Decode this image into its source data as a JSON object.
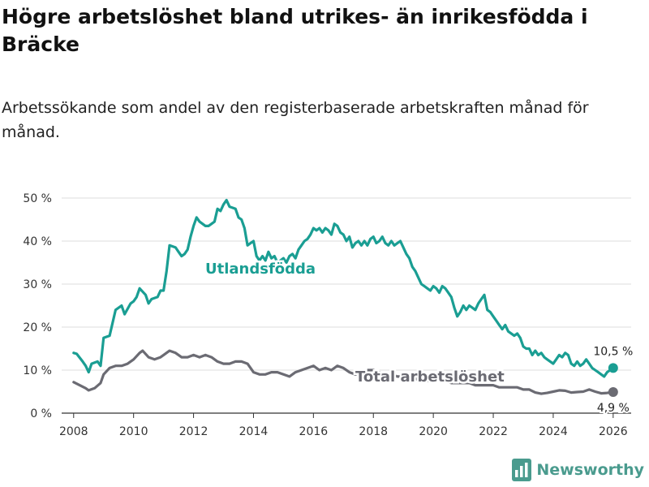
{
  "title": "Högre arbetslöshet bland utrikes- än inrikesfödda i Bräcke",
  "subtitle": "Arbetssökande som andel av den registerbaserade arbetskraften månad för månad.",
  "brand": {
    "name": "Newsworthy",
    "color": "#4a9b8e"
  },
  "colors": {
    "foreign": "#1a9e93",
    "total": "#6b6b73",
    "grid": "#dddddd",
    "axis": "#333333"
  },
  "chart_data": {
    "type": "line",
    "title": "Högre arbetslöshet bland utrikes- än inrikesfödda i Bräcke",
    "xlabel": "",
    "ylabel": "",
    "xlim": [
      2007.6,
      2026.6
    ],
    "ylim": [
      0,
      50
    ],
    "x_ticks": [
      2008,
      2010,
      2012,
      2014,
      2016,
      2018,
      2020,
      2022,
      2024,
      2026
    ],
    "x_tick_labels": [
      "2008",
      "2010",
      "2012",
      "2014",
      "2016",
      "2018",
      "2020",
      "2022",
      "2024",
      "2026"
    ],
    "y_ticks": [
      0,
      10,
      20,
      30,
      40,
      50
    ],
    "y_tick_labels": [
      "0 %",
      "10 %",
      "20 %",
      "30 %",
      "40 %",
      "50 %"
    ],
    "grid": true,
    "series": [
      {
        "name": "Utlandsfödda",
        "color": "#1a9e93",
        "end_label": "10,5 %",
        "points": [
          [
            2008.0,
            14.0
          ],
          [
            2008.1,
            13.8
          ],
          [
            2008.3,
            12.0
          ],
          [
            2008.4,
            11.0
          ],
          [
            2008.5,
            9.5
          ],
          [
            2008.6,
            11.5
          ],
          [
            2008.8,
            12.0
          ],
          [
            2008.9,
            11.0
          ],
          [
            2009.0,
            17.5
          ],
          [
            2009.2,
            18.0
          ],
          [
            2009.4,
            24.0
          ],
          [
            2009.6,
            25.0
          ],
          [
            2009.7,
            23.0
          ],
          [
            2009.9,
            25.5
          ],
          [
            2010.0,
            26.0
          ],
          [
            2010.1,
            27.0
          ],
          [
            2010.2,
            29.0
          ],
          [
            2010.4,
            27.5
          ],
          [
            2010.5,
            25.5
          ],
          [
            2010.6,
            26.5
          ],
          [
            2010.8,
            27.0
          ],
          [
            2010.9,
            28.5
          ],
          [
            2011.0,
            28.5
          ],
          [
            2011.1,
            33.0
          ],
          [
            2011.2,
            39.0
          ],
          [
            2011.4,
            38.5
          ],
          [
            2011.5,
            37.5
          ],
          [
            2011.6,
            36.5
          ],
          [
            2011.7,
            37.0
          ],
          [
            2011.8,
            38.0
          ],
          [
            2011.9,
            41.0
          ],
          [
            2012.0,
            43.5
          ],
          [
            2012.1,
            45.5
          ],
          [
            2012.2,
            44.5
          ],
          [
            2012.4,
            43.5
          ],
          [
            2012.5,
            43.5
          ],
          [
            2012.6,
            44.0
          ],
          [
            2012.7,
            44.5
          ],
          [
            2012.8,
            47.5
          ],
          [
            2012.9,
            47.0
          ],
          [
            2013.0,
            48.5
          ],
          [
            2013.1,
            49.5
          ],
          [
            2013.2,
            48.0
          ],
          [
            2013.4,
            47.5
          ],
          [
            2013.5,
            45.5
          ],
          [
            2013.6,
            45.0
          ],
          [
            2013.7,
            43.0
          ],
          [
            2013.8,
            39.0
          ],
          [
            2013.9,
            39.5
          ],
          [
            2014.0,
            40.0
          ],
          [
            2014.1,
            36.5
          ],
          [
            2014.2,
            35.5
          ],
          [
            2014.3,
            36.5
          ],
          [
            2014.4,
            35.5
          ],
          [
            2014.5,
            37.5
          ],
          [
            2014.6,
            36.0
          ],
          [
            2014.7,
            36.5
          ],
          [
            2014.8,
            35.0
          ],
          [
            2014.9,
            35.5
          ],
          [
            2015.0,
            36.0
          ],
          [
            2015.1,
            35.0
          ],
          [
            2015.2,
            36.5
          ],
          [
            2015.3,
            37.0
          ],
          [
            2015.4,
            36.0
          ],
          [
            2015.5,
            38.0
          ],
          [
            2015.6,
            39.0
          ],
          [
            2015.7,
            40.0
          ],
          [
            2015.8,
            40.5
          ],
          [
            2015.9,
            41.5
          ],
          [
            2016.0,
            43.0
          ],
          [
            2016.1,
            42.5
          ],
          [
            2016.2,
            43.0
          ],
          [
            2016.3,
            42.0
          ],
          [
            2016.4,
            43.0
          ],
          [
            2016.5,
            42.5
          ],
          [
            2016.6,
            41.5
          ],
          [
            2016.7,
            44.0
          ],
          [
            2016.8,
            43.5
          ],
          [
            2016.9,
            42.0
          ],
          [
            2017.0,
            41.5
          ],
          [
            2017.1,
            40.0
          ],
          [
            2017.2,
            41.0
          ],
          [
            2017.3,
            38.5
          ],
          [
            2017.4,
            39.5
          ],
          [
            2017.5,
            40.0
          ],
          [
            2017.6,
            39.0
          ],
          [
            2017.7,
            40.0
          ],
          [
            2017.8,
            39.0
          ],
          [
            2017.9,
            40.5
          ],
          [
            2018.0,
            41.0
          ],
          [
            2018.1,
            39.5
          ],
          [
            2018.2,
            40.0
          ],
          [
            2018.3,
            41.0
          ],
          [
            2018.4,
            39.5
          ],
          [
            2018.5,
            39.0
          ],
          [
            2018.6,
            40.0
          ],
          [
            2018.7,
            39.0
          ],
          [
            2018.8,
            39.5
          ],
          [
            2018.9,
            40.0
          ],
          [
            2019.0,
            38.5
          ],
          [
            2019.1,
            37.0
          ],
          [
            2019.2,
            36.0
          ],
          [
            2019.3,
            34.0
          ],
          [
            2019.4,
            33.0
          ],
          [
            2019.5,
            31.5
          ],
          [
            2019.6,
            30.0
          ],
          [
            2019.7,
            29.5
          ],
          [
            2019.8,
            29.0
          ],
          [
            2019.9,
            28.5
          ],
          [
            2020.0,
            29.5
          ],
          [
            2020.1,
            29.0
          ],
          [
            2020.2,
            28.0
          ],
          [
            2020.3,
            29.5
          ],
          [
            2020.4,
            29.0
          ],
          [
            2020.5,
            28.0
          ],
          [
            2020.6,
            27.0
          ],
          [
            2020.7,
            24.5
          ],
          [
            2020.8,
            22.5
          ],
          [
            2020.9,
            23.5
          ],
          [
            2021.0,
            25.0
          ],
          [
            2021.1,
            24.0
          ],
          [
            2021.2,
            25.0
          ],
          [
            2021.3,
            24.5
          ],
          [
            2021.4,
            24.0
          ],
          [
            2021.5,
            25.5
          ],
          [
            2021.6,
            26.5
          ],
          [
            2021.7,
            27.5
          ],
          [
            2021.8,
            24.0
          ],
          [
            2021.9,
            23.5
          ],
          [
            2022.0,
            22.5
          ],
          [
            2022.1,
            21.5
          ],
          [
            2022.2,
            20.5
          ],
          [
            2022.3,
            19.5
          ],
          [
            2022.4,
            20.5
          ],
          [
            2022.5,
            19.0
          ],
          [
            2022.6,
            18.5
          ],
          [
            2022.7,
            18.0
          ],
          [
            2022.8,
            18.5
          ],
          [
            2022.9,
            17.5
          ],
          [
            2023.0,
            15.5
          ],
          [
            2023.1,
            15.0
          ],
          [
            2023.2,
            15.0
          ],
          [
            2023.3,
            13.5
          ],
          [
            2023.4,
            14.5
          ],
          [
            2023.5,
            13.5
          ],
          [
            2023.6,
            14.0
          ],
          [
            2023.7,
            13.0
          ],
          [
            2023.8,
            12.5
          ],
          [
            2023.9,
            12.0
          ],
          [
            2024.0,
            11.5
          ],
          [
            2024.1,
            12.5
          ],
          [
            2024.2,
            13.5
          ],
          [
            2024.3,
            13.0
          ],
          [
            2024.4,
            14.0
          ],
          [
            2024.5,
            13.5
          ],
          [
            2024.6,
            11.5
          ],
          [
            2024.7,
            11.0
          ],
          [
            2024.8,
            12.0
          ],
          [
            2024.9,
            11.0
          ],
          [
            2025.0,
            11.5
          ],
          [
            2025.1,
            12.5
          ],
          [
            2025.2,
            11.5
          ],
          [
            2025.3,
            10.5
          ],
          [
            2025.4,
            10.0
          ],
          [
            2025.5,
            9.5
          ],
          [
            2025.6,
            9.0
          ],
          [
            2025.7,
            8.5
          ],
          [
            2025.8,
            9.5
          ],
          [
            2025.9,
            10.0
          ],
          [
            2026.0,
            10.5
          ]
        ]
      },
      {
        "name": "Total arbetslöshet",
        "color": "#6b6b73",
        "end_label": "4,9 %",
        "points": [
          [
            2008.0,
            7.2
          ],
          [
            2008.2,
            6.5
          ],
          [
            2008.4,
            5.8
          ],
          [
            2008.5,
            5.3
          ],
          [
            2008.7,
            5.8
          ],
          [
            2008.9,
            7.0
          ],
          [
            2009.0,
            9.0
          ],
          [
            2009.2,
            10.5
          ],
          [
            2009.4,
            11.0
          ],
          [
            2009.6,
            11.0
          ],
          [
            2009.8,
            11.5
          ],
          [
            2010.0,
            12.5
          ],
          [
            2010.2,
            14.0
          ],
          [
            2010.3,
            14.5
          ],
          [
            2010.5,
            13.0
          ],
          [
            2010.7,
            12.5
          ],
          [
            2010.9,
            13.0
          ],
          [
            2011.0,
            13.5
          ],
          [
            2011.2,
            14.5
          ],
          [
            2011.4,
            14.0
          ],
          [
            2011.6,
            13.0
          ],
          [
            2011.8,
            13.0
          ],
          [
            2012.0,
            13.5
          ],
          [
            2012.2,
            13.0
          ],
          [
            2012.4,
            13.5
          ],
          [
            2012.6,
            13.0
          ],
          [
            2012.8,
            12.0
          ],
          [
            2013.0,
            11.5
          ],
          [
            2013.2,
            11.5
          ],
          [
            2013.4,
            12.0
          ],
          [
            2013.6,
            12.0
          ],
          [
            2013.8,
            11.5
          ],
          [
            2014.0,
            9.5
          ],
          [
            2014.2,
            9.0
          ],
          [
            2014.4,
            9.0
          ],
          [
            2014.6,
            9.5
          ],
          [
            2014.8,
            9.5
          ],
          [
            2015.0,
            9.0
          ],
          [
            2015.2,
            8.5
          ],
          [
            2015.4,
            9.5
          ],
          [
            2015.6,
            10.0
          ],
          [
            2015.8,
            10.5
          ],
          [
            2016.0,
            11.0
          ],
          [
            2016.2,
            10.0
          ],
          [
            2016.4,
            10.5
          ],
          [
            2016.6,
            10.0
          ],
          [
            2016.8,
            11.0
          ],
          [
            2017.0,
            10.5
          ],
          [
            2017.2,
            9.5
          ],
          [
            2017.4,
            9.0
          ],
          [
            2017.6,
            9.5
          ],
          [
            2017.8,
            10.0
          ],
          [
            2018.0,
            10.0
          ],
          [
            2018.2,
            9.5
          ],
          [
            2018.4,
            9.0
          ],
          [
            2018.6,
            9.0
          ],
          [
            2018.8,
            8.5
          ],
          [
            2019.0,
            8.5
          ],
          [
            2019.2,
            8.0
          ],
          [
            2019.4,
            8.0
          ],
          [
            2019.6,
            7.5
          ],
          [
            2019.8,
            7.5
          ],
          [
            2020.0,
            7.5
          ],
          [
            2020.2,
            8.0
          ],
          [
            2020.4,
            7.5
          ],
          [
            2020.6,
            7.0
          ],
          [
            2020.8,
            7.0
          ],
          [
            2021.0,
            7.0
          ],
          [
            2021.2,
            7.0
          ],
          [
            2021.4,
            6.5
          ],
          [
            2021.6,
            6.5
          ],
          [
            2021.8,
            6.5
          ],
          [
            2022.0,
            6.5
          ],
          [
            2022.2,
            6.0
          ],
          [
            2022.4,
            6.0
          ],
          [
            2022.6,
            6.0
          ],
          [
            2022.8,
            6.0
          ],
          [
            2023.0,
            5.5
          ],
          [
            2023.2,
            5.5
          ],
          [
            2023.4,
            4.8
          ],
          [
            2023.6,
            4.5
          ],
          [
            2023.8,
            4.7
          ],
          [
            2024.0,
            5.0
          ],
          [
            2024.2,
            5.3
          ],
          [
            2024.4,
            5.2
          ],
          [
            2024.6,
            4.8
          ],
          [
            2024.8,
            4.9
          ],
          [
            2025.0,
            5.0
          ],
          [
            2025.2,
            5.5
          ],
          [
            2025.4,
            5.0
          ],
          [
            2025.6,
            4.6
          ],
          [
            2025.8,
            4.7
          ],
          [
            2026.0,
            4.9
          ]
        ]
      }
    ]
  }
}
